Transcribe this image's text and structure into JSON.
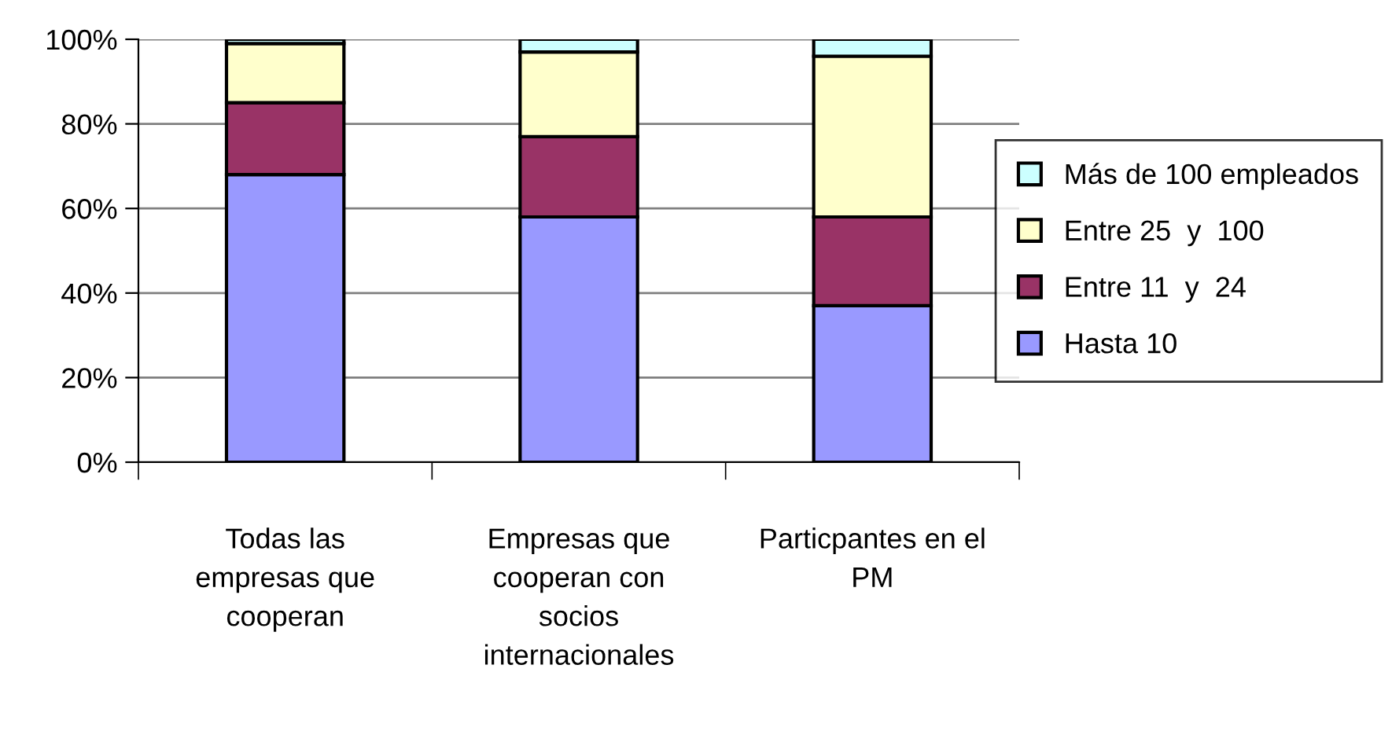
{
  "chart_data": {
    "type": "bar",
    "stacked": true,
    "categories": [
      "Todas las\nempresas que\ncooperan",
      "Empresas que\ncooperan con\nsocios\ninternacionales",
      "Particpantes en el\nPM"
    ],
    "series": [
      {
        "name": "Hasta 10",
        "color": "#9999ff",
        "values": [
          68,
          58,
          37
        ]
      },
      {
        "name": "Entre 11  y  24",
        "color": "#993366",
        "values": [
          17,
          19,
          21
        ]
      },
      {
        "name": "Entre 25  y  100",
        "color": "#ffffcc",
        "values": [
          14,
          20,
          38
        ]
      },
      {
        "name": "Más de 100 empleados",
        "color": "#ccffff",
        "values": [
          1,
          3,
          4
        ]
      }
    ],
    "ylim": [
      0,
      100
    ],
    "yticks": [
      {
        "value": 0,
        "label": "0%"
      },
      {
        "value": 20,
        "label": "20%"
      },
      {
        "value": 40,
        "label": "40%"
      },
      {
        "value": 60,
        "label": "60%"
      },
      {
        "value": 80,
        "label": "80%"
      },
      {
        "value": 100,
        "label": "100%"
      }
    ],
    "grid": "y",
    "legend": "right"
  }
}
